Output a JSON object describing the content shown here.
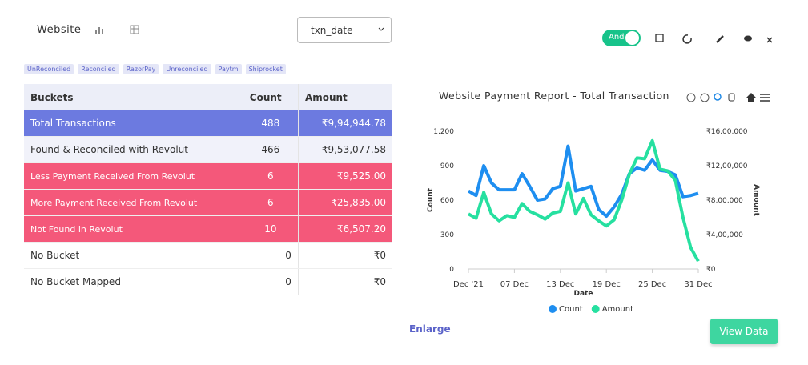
{
  "header": {
    "title": "Website",
    "select": "txn_date"
  },
  "tags": [
    "UnReconciled",
    "Reconciled",
    "RazorPay",
    "Unreconciled",
    "Paytm",
    "Shiprocket"
  ],
  "toggle": "And",
  "table": {
    "columns": [
      "Buckets",
      "Count",
      "Amount"
    ],
    "rows": [
      [
        "Total Transactions",
        488,
        "₹9,94,944.78"
      ],
      [
        "Found & Reconciled with Revolut",
        466,
        "₹9,53,077.58"
      ],
      [
        "Less Payment Received From Revolut",
        6,
        "₹9,525.00"
      ],
      [
        "More Payment Received From Revolut",
        6,
        "₹25,835.00"
      ],
      [
        "Not Found in Revolut",
        10,
        "₹6,507.20"
      ],
      [
        "No Bucket",
        0,
        "₹0"
      ],
      [
        "No Bucket Mapped",
        0,
        "₹0"
      ]
    ]
  },
  "chart": {
    "type": "line",
    "title": "Website Payment Report - Total Transaction",
    "x": [
      1,
      2,
      3,
      4,
      5,
      6,
      7,
      8,
      9,
      10,
      11,
      12,
      13,
      14,
      15,
      16,
      17,
      18,
      19,
      20,
      21,
      22,
      23,
      24,
      25,
      26,
      27,
      28,
      29,
      30,
      31
    ],
    "xlim": [
      1,
      31
    ],
    "xticks": [
      {
        "value": 1,
        "label": "Dec '21"
      },
      {
        "value": 7,
        "label": "07 Dec"
      },
      {
        "value": 13,
        "label": "13 Dec"
      },
      {
        "value": 19,
        "label": "19 Dec"
      },
      {
        "value": 25,
        "label": "25 Dec"
      },
      {
        "value": 31,
        "label": "31 Dec"
      }
    ],
    "xlabel": "Date",
    "ylabel": "Count",
    "y2label": "Amount",
    "ylim": [
      0,
      1200
    ],
    "yticks": [
      0,
      300,
      600,
      900,
      {
        "value": 1200,
        "label": "1,200"
      }
    ],
    "y2lim": [
      0,
      1600000
    ],
    "y2ticks": [
      {
        "value": 0,
        "label": "₹0"
      },
      {
        "value": 400000,
        "label": "₹4,00,000"
      },
      {
        "value": 800000,
        "label": "₹8,00,000"
      },
      {
        "value": 1200000,
        "label": "₹12,00,000"
      },
      {
        "value": 1600000,
        "label": "₹16,00,000"
      }
    ],
    "legend": "bottom",
    "series": [
      {
        "name": "Count",
        "color": "#1e8ef0",
        "values": [
          680,
          640,
          900,
          750,
          690,
          690,
          690,
          830,
          720,
          600,
          610,
          700,
          720,
          1070,
          680,
          700,
          720,
          520,
          460,
          540,
          650,
          830,
          880,
          860,
          950,
          860,
          850,
          820,
          630,
          640,
          660
        ]
      },
      {
        "name": "Amount",
        "color": "#26e0a0",
        "axis": "y2",
        "values": [
          640000,
          590000,
          890000,
          640000,
          560000,
          620000,
          600000,
          760000,
          670000,
          630000,
          580000,
          650000,
          670000,
          1000000,
          640000,
          820000,
          630000,
          560000,
          500000,
          570000,
          800000,
          1100000,
          1290000,
          1280000,
          1490000,
          1160000,
          1140000,
          1030000,
          600000,
          250000,
          90000
        ]
      }
    ]
  },
  "enlarge": "Enlarge",
  "view_data": "View Data"
}
